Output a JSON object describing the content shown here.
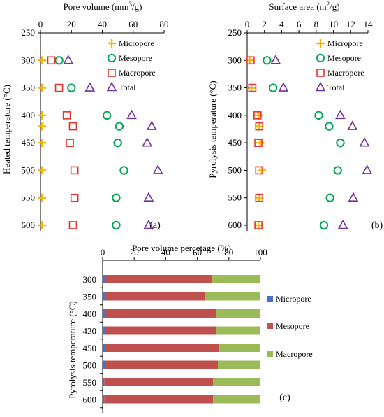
{
  "chart_data": [
    {
      "type": "scatter",
      "panel_label": "(a)",
      "xlabel_text": "Pore volume (mm",
      "xlabel_sup": "3",
      "xlabel_tail": "/g)",
      "ylabel": "Heated temperature (°C)",
      "xlim": [
        0,
        80
      ],
      "xticks": [
        0,
        20,
        40,
        60,
        80
      ],
      "ylim": [
        250,
        625
      ],
      "yticks": [
        250,
        300,
        350,
        400,
        450,
        500,
        550,
        600
      ],
      "y_reversed": true,
      "x_axis_position": "top",
      "legend_position": "top-right",
      "y": [
        300,
        350,
        400,
        420,
        450,
        500,
        550,
        600
      ],
      "series": [
        {
          "name": "Micropore",
          "marker": "plus",
          "color": "#F5B800",
          "values": [
            1,
            1,
            1,
            1,
            1,
            1,
            1,
            1
          ]
        },
        {
          "name": "Mesopore",
          "marker": "circle",
          "color": "#00A651",
          "values": [
            12,
            20,
            43,
            51,
            50,
            54,
            49,
            49
          ]
        },
        {
          "name": "Macropore",
          "marker": "square",
          "color": "#E8302A",
          "values": [
            7,
            12,
            17,
            21,
            19,
            22,
            22,
            21
          ]
        },
        {
          "name": "Total",
          "marker": "triangle",
          "color": "#7030A0",
          "values": [
            18,
            32,
            59,
            72,
            69,
            76,
            70,
            70
          ]
        }
      ]
    },
    {
      "type": "scatter",
      "panel_label": "(b)",
      "xlabel_text": "Surface area (m",
      "xlabel_sup": "2",
      "xlabel_tail": "/g)",
      "ylabel": "Pyrolysis  temperature (°C)",
      "xlim": [
        0,
        14
      ],
      "xticks": [
        0,
        2,
        4,
        6,
        8,
        10,
        12,
        14
      ],
      "ylim": [
        250,
        625
      ],
      "yticks": [
        250,
        300,
        350,
        400,
        450,
        500,
        550,
        600
      ],
      "y_reversed": true,
      "x_axis_position": "top",
      "legend_position": "top-right",
      "y": [
        300,
        350,
        400,
        420,
        450,
        500,
        550,
        600
      ],
      "series": [
        {
          "name": "Micropore",
          "marker": "plus",
          "color": "#F5B800",
          "values": [
            0.3,
            0.5,
            1.3,
            1.4,
            1.5,
            1.7,
            1.4,
            1.3
          ]
        },
        {
          "name": "Mesopore",
          "marker": "circle",
          "color": "#00A651",
          "values": [
            2.3,
            3.0,
            8.3,
            9.5,
            10.8,
            10.5,
            9.6,
            8.9
          ]
        },
        {
          "name": "Macropore",
          "marker": "square",
          "color": "#E8302A",
          "values": [
            0.4,
            0.6,
            1.2,
            1.4,
            1.3,
            1.4,
            1.4,
            1.3
          ]
        },
        {
          "name": "Total",
          "marker": "triangle",
          "color": "#7030A0",
          "values": [
            3.3,
            4.2,
            10.8,
            12.2,
            13.6,
            13.9,
            12.3,
            11.1
          ]
        }
      ]
    },
    {
      "type": "bar",
      "stacked": true,
      "orientation": "horizontal",
      "panel_label": "(c)",
      "xlabel": "Pore volume percetage (%)",
      "ylabel": "Pyrolysis temperature (°C)",
      "xlim": [
        0,
        100
      ],
      "xticks": [
        0,
        20,
        40,
        60,
        80,
        100
      ],
      "x_axis_position": "top",
      "legend_position": "right",
      "categories": [
        "300",
        "350",
        "400",
        "420",
        "450",
        "500",
        "550",
        "600"
      ],
      "series": [
        {
          "name": "Micropore",
          "color": "#4472C4",
          "values": [
            2,
            2,
            2,
            2,
            2,
            2,
            1,
            1
          ]
        },
        {
          "name": "Mesopore",
          "color": "#C0504D",
          "values": [
            67,
            63,
            70,
            70,
            72,
            71,
            69,
            69
          ]
        },
        {
          "name": "Macropore",
          "color": "#9BBB59",
          "values": [
            31,
            35,
            28,
            28,
            26,
            27,
            30,
            30
          ]
        }
      ]
    }
  ]
}
